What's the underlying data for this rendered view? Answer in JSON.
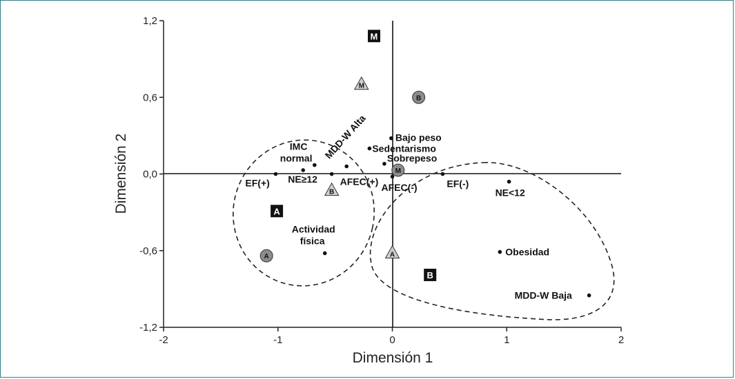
{
  "chart_data": {
    "type": "scatter",
    "xlabel": "Dimensión 1",
    "ylabel": "Dimensión 2",
    "xlim": [
      -2,
      2
    ],
    "ylim": [
      -1.2,
      1.2
    ],
    "x_ticks": [
      "-2",
      "-1",
      "0",
      "1",
      "2"
    ],
    "y_ticks": [
      "1,2",
      "0,6",
      "0,0",
      "-0,6",
      "-1,2"
    ],
    "points": [
      {
        "label": "IMC normal",
        "x": -0.68,
        "y": 0.07
      },
      {
        "label": "NE≥12",
        "x": -0.78,
        "y": 0.03
      },
      {
        "label": "EF(+)",
        "x": -1.02,
        "y": 0.0
      },
      {
        "label": "MDD-W Alta",
        "x": -0.4,
        "y": 0.06
      },
      {
        "label": "AFEC(+)",
        "x": -0.53,
        "y": 0.0
      },
      {
        "label": "Bajo peso",
        "x": -0.01,
        "y": 0.28
      },
      {
        "label": "Sedentarismo",
        "x": -0.2,
        "y": 0.2
      },
      {
        "label": "Sobrepeso",
        "x": -0.07,
        "y": 0.08
      },
      {
        "label": "AFEC(-)",
        "x": 0.0,
        "y": -0.02
      },
      {
        "label": "EF(-)",
        "x": 0.44,
        "y": 0.0
      },
      {
        "label": "NE<12",
        "x": 1.02,
        "y": -0.06
      },
      {
        "label": "Actividad física",
        "x": -0.59,
        "y": -0.62
      },
      {
        "label": "Obesidad",
        "x": 0.94,
        "y": -0.61
      },
      {
        "label": "MDD-W Baja",
        "x": 1.72,
        "y": -0.95
      }
    ],
    "group_boxes": [
      {
        "label": "M",
        "x": -0.16,
        "y": 1.08
      },
      {
        "label": "A",
        "x": -1.01,
        "y": -0.29
      },
      {
        "label": "B",
        "x": 0.33,
        "y": -0.79
      }
    ],
    "group_circles": [
      {
        "label": "B",
        "x": 0.23,
        "y": 0.6
      },
      {
        "label": "M",
        "x": 0.05,
        "y": 0.03
      },
      {
        "label": "A",
        "x": -1.1,
        "y": -0.64
      }
    ],
    "group_triangles": [
      {
        "label": "M",
        "x": -0.27,
        "y": 0.7
      },
      {
        "label": "B",
        "x": -0.53,
        "y": -0.13
      },
      {
        "label": "A",
        "x": 0.0,
        "y": -0.62
      }
    ]
  }
}
